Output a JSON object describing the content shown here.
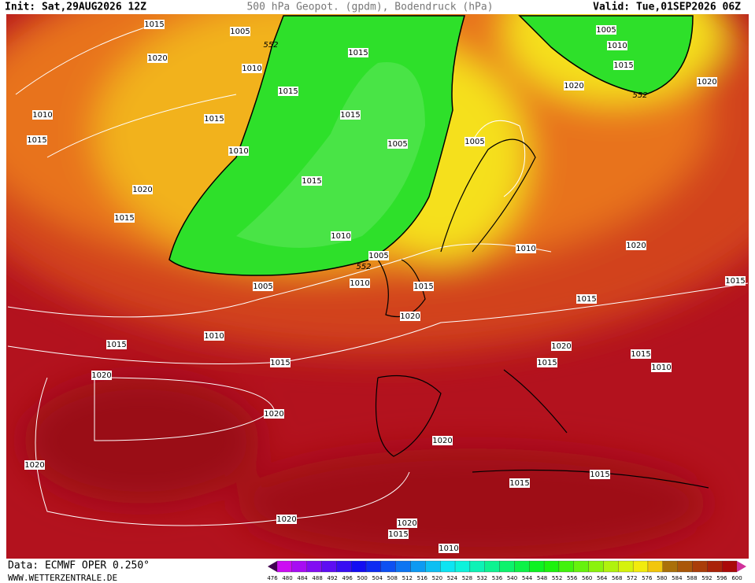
{
  "header": {
    "init": "Init: Sat,29AUG2026 12Z",
    "title": "500 hPa Geopot. (gpdm), Bodendruck (hPa)",
    "valid": "Valid: Tue,01SEP2026 06Z"
  },
  "isobar_labels": [
    1015,
    1005,
    552,
    1015,
    1020,
    1010,
    1015,
    1015,
    1010,
    1015,
    1005,
    1015,
    1010,
    1015,
    1020,
    1015,
    1010,
    1005,
    552,
    1010,
    1005,
    1015,
    1020,
    1010,
    1015,
    1015,
    1020,
    1020,
    1020,
    1020,
    1015,
    1015,
    1020,
    1020,
    1015,
    1010,
    1005,
    1010,
    1015,
    1020,
    552,
    1020,
    1005,
    1010,
    1020,
    1015,
    1015,
    1020,
    1015,
    1015,
    1010
  ],
  "colorbar": {
    "ticks": [
      476,
      480,
      484,
      488,
      492,
      496,
      500,
      504,
      508,
      512,
      516,
      520,
      524,
      528,
      532,
      536,
      540,
      544,
      548,
      552,
      556,
      560,
      564,
      568,
      572,
      576,
      580,
      584,
      588,
      592,
      596,
      600
    ]
  },
  "footer": {
    "data": "Data: ECMWF OPER 0.250°",
    "site": "WWW.WETTERZENTRALE.DE"
  }
}
